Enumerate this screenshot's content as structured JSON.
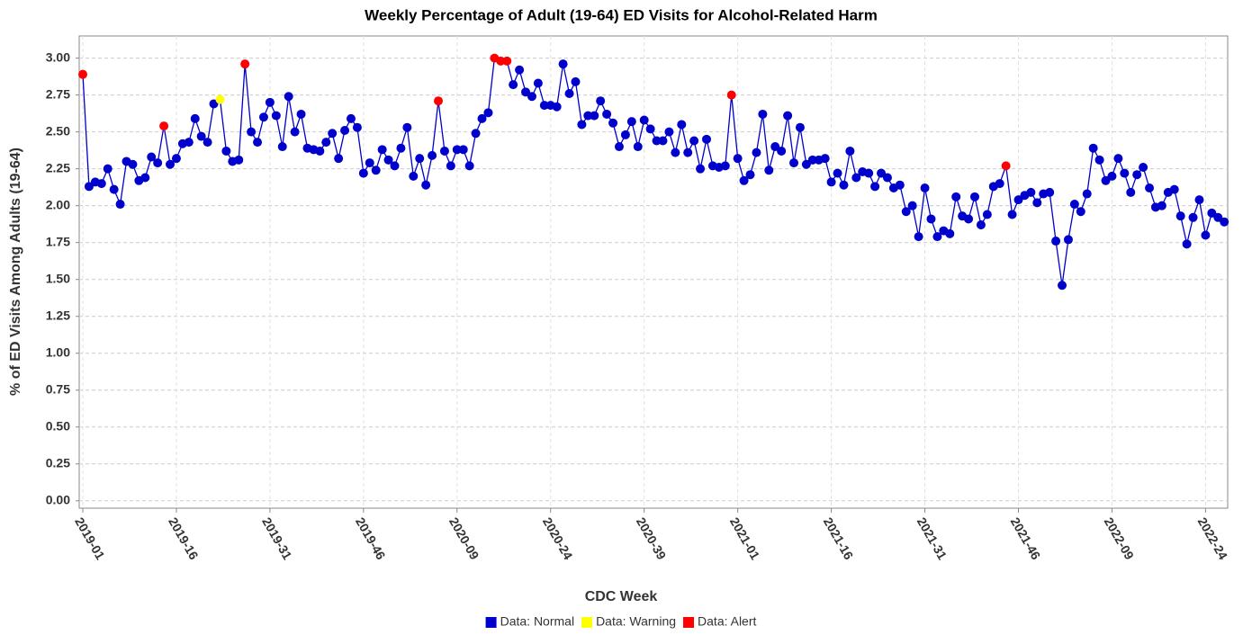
{
  "chart_data": {
    "type": "line",
    "title": "Weekly Percentage of Adult (19-64) ED Visits for Alcohol-Related Harm",
    "x_label": "CDC Week",
    "y_label": "% of ED Visits Among Adults (19-64)",
    "categories": [
      "2019-01",
      null,
      null,
      null,
      null,
      null,
      null,
      null,
      null,
      null,
      null,
      null,
      null,
      null,
      null,
      "2019-16",
      null,
      null,
      null,
      null,
      null,
      null,
      null,
      null,
      null,
      null,
      null,
      null,
      null,
      null,
      "2019-31",
      null,
      null,
      null,
      null,
      null,
      null,
      null,
      null,
      null,
      null,
      null,
      null,
      null,
      null,
      "2019-46",
      null,
      null,
      null,
      null,
      null,
      null,
      null,
      null,
      null,
      null,
      null,
      null,
      null,
      null,
      "2020-09",
      null,
      null,
      null,
      null,
      null,
      null,
      null,
      null,
      null,
      null,
      null,
      null,
      null,
      null,
      "2020-24",
      null,
      null,
      null,
      null,
      null,
      null,
      null,
      null,
      null,
      null,
      null,
      null,
      null,
      null,
      "2020-39",
      null,
      null,
      null,
      null,
      null,
      null,
      null,
      null,
      null,
      null,
      null,
      null,
      null,
      null,
      "2021-01",
      null,
      null,
      null,
      null,
      null,
      null,
      null,
      null,
      null,
      null,
      null,
      null,
      null,
      null,
      "2021-16",
      null,
      null,
      null,
      null,
      null,
      null,
      null,
      null,
      null,
      null,
      null,
      null,
      null,
      null,
      "2021-31",
      null,
      null,
      null,
      null,
      null,
      null,
      null,
      null,
      null,
      null,
      null,
      null,
      null,
      null,
      "2021-46",
      null,
      null,
      null,
      null,
      null,
      null,
      null,
      null,
      null,
      null,
      null,
      null,
      null,
      null,
      "2022-09",
      null,
      null,
      null,
      null,
      null,
      null,
      null,
      null,
      null,
      null,
      null,
      null,
      null,
      null,
      "2022-24",
      null,
      null,
      null
    ],
    "series": [
      {
        "color": "#0000cc",
        "values": [
          2.89,
          2.13,
          2.16,
          2.15,
          2.25,
          2.11,
          2.01,
          2.3,
          2.28,
          2.17,
          2.19,
          2.33,
          2.29,
          2.54,
          2.28,
          2.32,
          2.42,
          2.43,
          2.59,
          2.47,
          2.43,
          2.69,
          2.72,
          2.37,
          2.3,
          2.31,
          2.96,
          2.5,
          2.43,
          2.6,
          2.7,
          2.61,
          2.4,
          2.74,
          2.5,
          2.62,
          2.39,
          2.38,
          2.37,
          2.43,
          2.49,
          2.32,
          2.51,
          2.59,
          2.53,
          2.22,
          2.29,
          2.24,
          2.38,
          2.31,
          2.27,
          2.39,
          2.53,
          2.2,
          2.32,
          2.14,
          2.34,
          2.71,
          2.37,
          2.27,
          2.38,
          2.38,
          2.27,
          2.49,
          2.59,
          2.63,
          3.0,
          2.98,
          2.98,
          2.82,
          2.92,
          2.77,
          2.74,
          2.83,
          2.68,
          2.68,
          2.67,
          2.96,
          2.76,
          2.84,
          2.55,
          2.61,
          2.61,
          2.71,
          2.62,
          2.56,
          2.4,
          2.48,
          2.57,
          2.4,
          2.58,
          2.52,
          2.44,
          2.44,
          2.5,
          2.36,
          2.55,
          2.36,
          2.44,
          2.25,
          2.45,
          2.27,
          2.26,
          2.27,
          2.75,
          2.32,
          2.17,
          2.21,
          2.36,
          2.62,
          2.24,
          2.4,
          2.37,
          2.61,
          2.29,
          2.53,
          2.28,
          2.31,
          2.31,
          2.32,
          2.16,
          2.22,
          2.14,
          2.37,
          2.19,
          2.23,
          2.22,
          2.13,
          2.22,
          2.19,
          2.12,
          2.14,
          1.96,
          2.0,
          1.79,
          2.12,
          1.91,
          1.79,
          1.83,
          1.81,
          2.06,
          1.93,
          1.91,
          2.06,
          1.87,
          1.94,
          2.13,
          2.15,
          2.27,
          1.94,
          2.04,
          2.07,
          2.09,
          2.02,
          2.08,
          2.09,
          1.76,
          1.46,
          1.77,
          2.01,
          1.96,
          2.08,
          2.39,
          2.31,
          2.17,
          2.2,
          2.32,
          2.22,
          2.09,
          2.21,
          2.26,
          2.12,
          1.99,
          2.0,
          2.09,
          2.11,
          1.93,
          1.74,
          1.92,
          2.04,
          1.8,
          1.95,
          1.92,
          1.89
        ]
      }
    ],
    "legend": [
      {
        "name": "Data: Normal",
        "color": "#0000cc"
      },
      {
        "name": "Data: Warning",
        "color": "#ffff00",
        "points": [
          22
        ]
      },
      {
        "name": "Data: Alert",
        "color": "#ff0000",
        "points": [
          0,
          13,
          26,
          57,
          66,
          67,
          68,
          104,
          148
        ]
      }
    ],
    "ylim": [
      -0.05,
      3.15
    ],
    "yticks": [
      {
        "value": 0,
        "label": "0.00"
      },
      0.25,
      {
        "value": 0.5,
        "label": "0.50"
      },
      0.75,
      {
        "value": 1,
        "label": "1.00"
      },
      1.25,
      {
        "value": 1.5,
        "label": "1.50"
      },
      1.75,
      {
        "value": 2,
        "label": "2.00"
      },
      2.25,
      {
        "value": 2.5,
        "label": "2.50"
      },
      2.75,
      {
        "value": 3,
        "label": "3.00"
      }
    ],
    "grid": true
  }
}
